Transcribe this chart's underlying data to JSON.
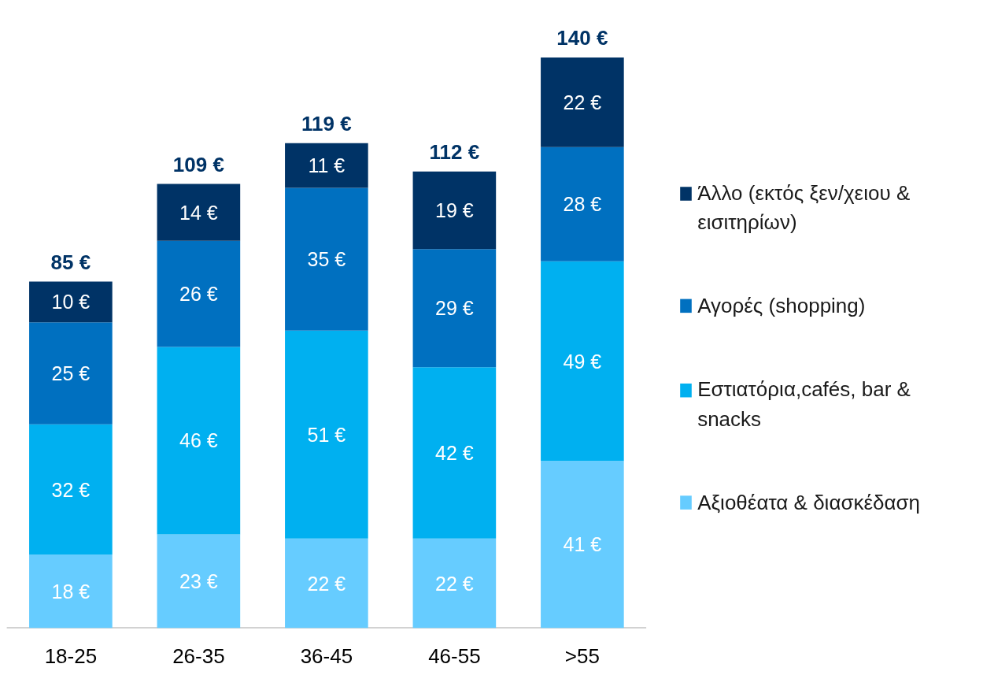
{
  "chart_data": {
    "type": "bar",
    "stacked": true,
    "categories": [
      "18-25",
      "26-35",
      "36-45",
      "46-55",
      ">55"
    ],
    "series": [
      {
        "name": "Αξιοθέατα & διασκέδαση",
        "color": "#66ccff",
        "values": [
          18,
          23,
          22,
          22,
          41
        ],
        "value_labels": [
          "18 €",
          "23 €",
          "22 €",
          "22 €",
          "41 €"
        ]
      },
      {
        "name": "Εστιατόρια,cafés, bar & snacks",
        "color": "#00b0f0",
        "values": [
          32,
          46,
          51,
          42,
          49
        ],
        "value_labels": [
          "32 €",
          "46 €",
          "51 €",
          "42 €",
          "49 €"
        ]
      },
      {
        "name": "Αγορές (shopping)",
        "color": "#0070c0",
        "values": [
          25,
          26,
          35,
          29,
          28
        ],
        "value_labels": [
          "25 €",
          "26 €",
          "35 €",
          "29 €",
          "28 €"
        ]
      },
      {
        "name": "Άλλο (εκτός ξεν/χειου & εισιτηρίων)",
        "color": "#003366",
        "values": [
          10,
          14,
          11,
          19,
          22
        ],
        "value_labels": [
          "10 €",
          "14 €",
          "11 €",
          "19 €",
          "22 €"
        ]
      }
    ],
    "totals": [
      "85 €",
      "109 €",
      "119 €",
      "112 €",
      "140 €"
    ],
    "legend": "right",
    "grid": false,
    "tick_labels": "x"
  }
}
